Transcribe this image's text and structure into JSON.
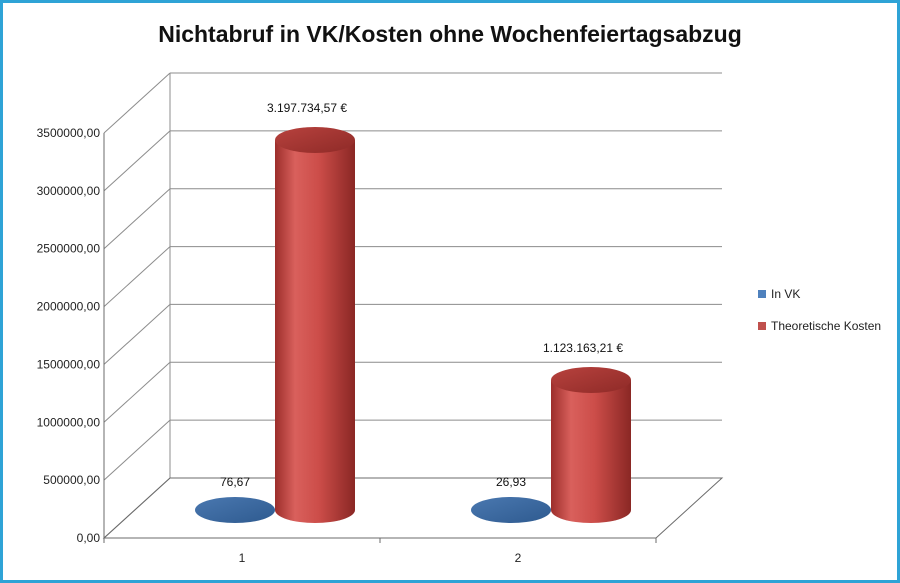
{
  "chart_data": {
    "type": "bar",
    "title": "Nichtabruf in VK/Kosten ohne Wochenfeiertagsabzug",
    "categories": [
      "1",
      "2"
    ],
    "series": [
      {
        "name": "In VK",
        "values": [
          76.67,
          26.93
        ],
        "labels": [
          "76,67",
          "26,93"
        ],
        "color": "#4f81bd"
      },
      {
        "name": "Theoretische Kosten",
        "values": [
          3197734.57,
          1123163.21
        ],
        "labels": [
          "3.197.734,57 €",
          "1.123.163,21 €"
        ],
        "color": "#c0504d"
      }
    ],
    "ylim": [
      0,
      3500000
    ],
    "yticks": [
      {
        "value": 0,
        "label": "0,00"
      },
      {
        "value": 500000,
        "label": "500000,00"
      },
      {
        "value": 1000000,
        "label": "1000000,00"
      },
      {
        "value": 1500000,
        "label": "1500000,00"
      },
      {
        "value": 2000000,
        "label": "2000000,00"
      },
      {
        "value": 2500000,
        "label": "2500000,00"
      },
      {
        "value": 3000000,
        "label": "3000000,00"
      },
      {
        "value": 3500000,
        "label": "3500000,00"
      }
    ],
    "grid": true,
    "legend_position": "right",
    "frame_color": "#2fa3d6"
  }
}
